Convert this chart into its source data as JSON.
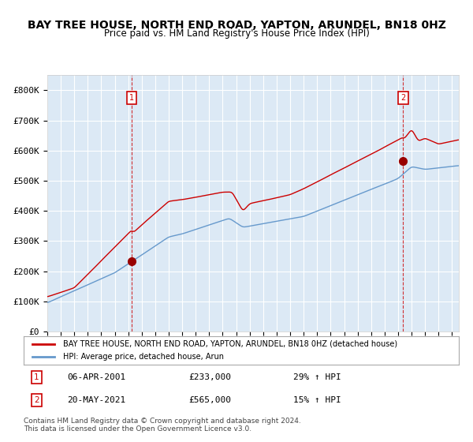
{
  "title": "BAY TREE HOUSE, NORTH END ROAD, YAPTON, ARUNDEL, BN18 0HZ",
  "subtitle": "Price paid vs. HM Land Registry's House Price Index (HPI)",
  "title_fontsize": 11,
  "subtitle_fontsize": 9,
  "bg_color": "#dce9f5",
  "plot_bg_color": "#dce9f5",
  "red_color": "#cc0000",
  "blue_color": "#6699cc",
  "red_dot_color": "#990000",
  "dashed_color": "#cc0000",
  "ylim": [
    0,
    850000
  ],
  "yticks": [
    0,
    100000,
    200000,
    300000,
    400000,
    500000,
    600000,
    700000,
    800000
  ],
  "ytick_labels": [
    "£0",
    "£100K",
    "£200K",
    "£300K",
    "£400K",
    "£500K",
    "£600K",
    "£700K",
    "£800K"
  ],
  "legend_label_red": "BAY TREE HOUSE, NORTH END ROAD, YAPTON, ARUNDEL, BN18 0HZ (detached house)",
  "legend_label_blue": "HPI: Average price, detached house, Arun",
  "sale1_date": "06-APR-2001",
  "sale1_price": 233000,
  "sale1_pct": "29% ↑ HPI",
  "sale2_date": "20-MAY-2021",
  "sale2_price": 565000,
  "sale2_pct": "15% ↑ HPI",
  "footnote1": "Contains HM Land Registry data © Crown copyright and database right 2024.",
  "footnote2": "This data is licensed under the Open Government Licence v3.0.",
  "x_start_year": 1995,
  "x_end_year": 2025,
  "sale1_x": 2001.27,
  "sale2_x": 2021.38
}
